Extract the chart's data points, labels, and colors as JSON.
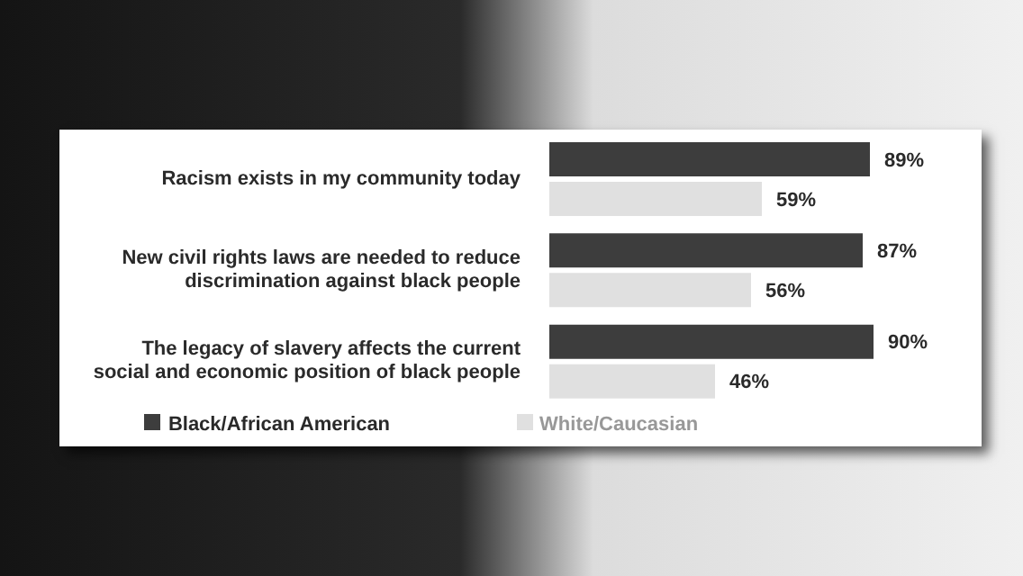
{
  "chart_data": {
    "type": "bar",
    "orientation": "horizontal",
    "categories": [
      "Racism exists in my community today",
      "New civil rights laws are needed to reduce discrimination against black people",
      "The legacy of slavery affects the current social and economic position of black people"
    ],
    "series": [
      {
        "name": "Black/African American",
        "color": "#3d3d3d",
        "values": [
          89,
          87,
          90
        ],
        "value_labels": [
          "89%",
          "87%",
          "90%"
        ]
      },
      {
        "name": "White/Caucasian",
        "color": "#e0e0e0",
        "values": [
          59,
          56,
          46
        ],
        "value_labels": [
          "59%",
          "56%",
          "46%"
        ]
      }
    ],
    "tick_labels": "y",
    "grid": false,
    "legend": "bottom"
  }
}
